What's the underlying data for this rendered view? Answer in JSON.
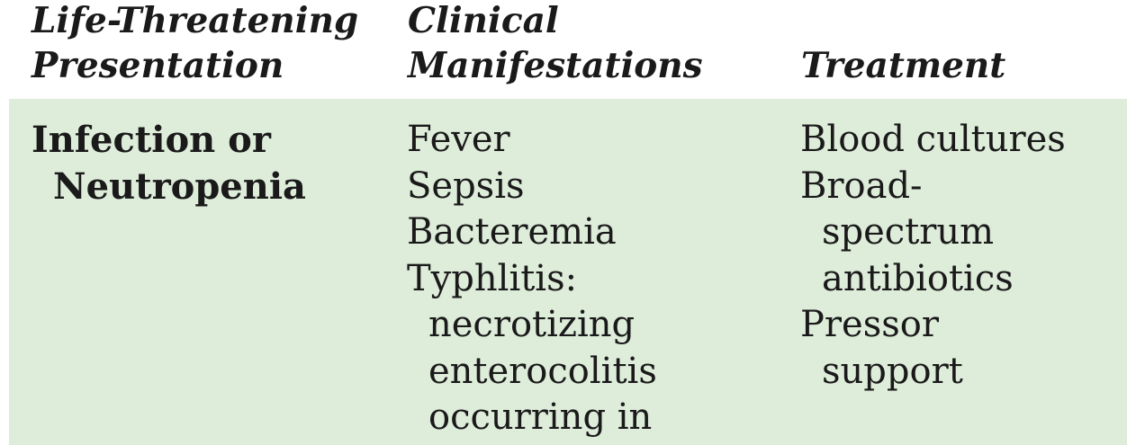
{
  "table": {
    "headers": {
      "presentation": [
        "Life-Threatening",
        "Presentation"
      ],
      "manifestations": [
        "Clinical",
        "Manifestations"
      ],
      "treatment": [
        "Treatment"
      ]
    },
    "row": {
      "condition": [
        "Infection or",
        "Neutropenia"
      ],
      "manifestations": [
        "Fever",
        "Sepsis",
        "Bacteremia",
        "Typhlitis:",
        "necrotizing",
        "enterocolitis",
        "occurring in"
      ],
      "treatment": [
        "Blood cultures",
        "Broad-",
        "spectrum",
        "antibiotics",
        "Pressor",
        "support"
      ]
    },
    "colors": {
      "row_background": "#deecda",
      "text": "#1a1a1a"
    }
  }
}
